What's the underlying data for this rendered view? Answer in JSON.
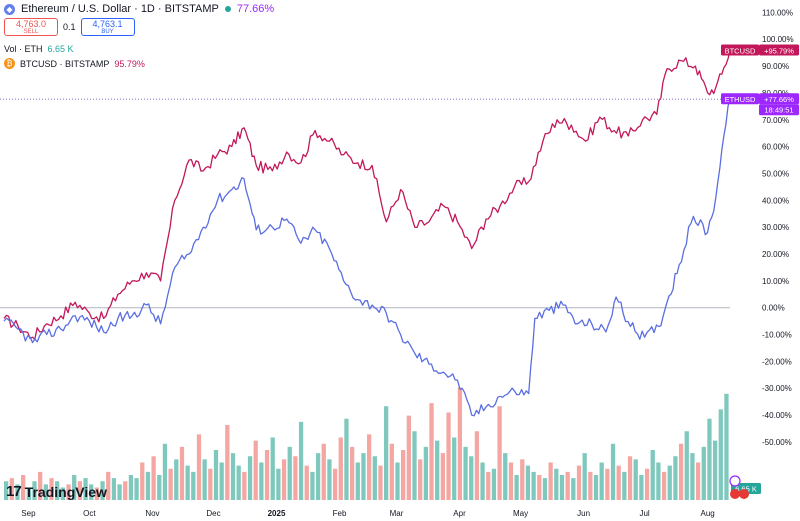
{
  "header": {
    "title": "Ethereum / U.S. Dollar · 1D · BITSTAMP",
    "change": "77.66%",
    "coin_glyph": "◆"
  },
  "trade": {
    "sell_price": "4,763.0",
    "sell_label": "SELL",
    "spread": "0.1",
    "buy_price": "4,763.1",
    "buy_label": "BUY"
  },
  "volume_legend": {
    "label": "Vol · ETH",
    "value": "6.65 K"
  },
  "compare_legend": {
    "label": "BTCUSD · BITSTAMP",
    "value": "95.79%",
    "coin_glyph": "₿"
  },
  "branding": {
    "text": "TradingView",
    "mark": "17"
  },
  "colors": {
    "eth": "#5b6ee1",
    "eth_up": "#9c27ff",
    "btc": "#c2185b",
    "vol_up": "#7fc8bd",
    "vol_down": "#f4a6a3",
    "zero": "#b2b5be",
    "price_line": "#7e57c2"
  },
  "chart_data": {
    "type": "line",
    "percent_scale": true,
    "x_tick_labels": [
      "Sep",
      "Oct",
      "Nov",
      "Dec",
      "2025",
      "Feb",
      "Mar",
      "Apr",
      "May",
      "Jun",
      "Jul",
      "Aug"
    ],
    "y_tick_labels": [
      "110.00%",
      "100.00%",
      "90.00%",
      "80.00%",
      "70.00%",
      "60.00%",
      "50.00%",
      "40.00%",
      "30.00%",
      "20.00%",
      "10.00%",
      "0.00%",
      "-10.00%",
      "-20.00%",
      "-30.00%",
      "-40.00%",
      "-50.00%"
    ],
    "ylim": [
      -53,
      112
    ],
    "series": [
      {
        "name": "ETHUSD",
        "last_label": "+77.66%",
        "time_label": "18:49:51",
        "tag": "ETHUSD",
        "points": [
          [
            "2024-08-20",
            -5
          ],
          [
            "2024-08-27",
            -8
          ],
          [
            "2024-09-03",
            -13
          ],
          [
            "2024-09-10",
            -10
          ],
          [
            "2024-09-17",
            -8
          ],
          [
            "2024-09-24",
            -3
          ],
          [
            "2024-10-01",
            -5
          ],
          [
            "2024-10-08",
            -9
          ],
          [
            "2024-10-15",
            -4
          ],
          [
            "2024-10-22",
            -3
          ],
          [
            "2024-10-29",
            1
          ],
          [
            "2024-11-05",
            -6
          ],
          [
            "2024-11-12",
            15
          ],
          [
            "2024-11-19",
            20
          ],
          [
            "2024-11-26",
            30
          ],
          [
            "2024-12-03",
            40
          ],
          [
            "2024-12-10",
            44
          ],
          [
            "2024-12-16",
            48
          ],
          [
            "2024-12-22",
            29
          ],
          [
            "2024-12-30",
            30
          ],
          [
            "2025-01-06",
            33
          ],
          [
            "2025-01-13",
            24
          ],
          [
            "2025-01-20",
            29
          ],
          [
            "2025-01-27",
            22
          ],
          [
            "2025-02-03",
            10
          ],
          [
            "2025-02-10",
            3
          ],
          [
            "2025-02-17",
            1
          ],
          [
            "2025-02-24",
            -2
          ],
          [
            "2025-03-03",
            -10
          ],
          [
            "2025-03-10",
            -17
          ],
          [
            "2025-03-17",
            -21
          ],
          [
            "2025-03-24",
            -24
          ],
          [
            "2025-03-31",
            -27
          ],
          [
            "2025-04-07",
            -40
          ],
          [
            "2025-04-14",
            -37
          ],
          [
            "2025-04-21",
            -33
          ],
          [
            "2025-04-28",
            -31
          ],
          [
            "2025-05-05",
            -32
          ],
          [
            "2025-05-08",
            -4
          ],
          [
            "2025-05-15",
            -1
          ],
          [
            "2025-05-22",
            1
          ],
          [
            "2025-05-29",
            -6
          ],
          [
            "2025-06-05",
            -6
          ],
          [
            "2025-06-12",
            -9
          ],
          [
            "2025-06-17",
            4
          ],
          [
            "2025-06-24",
            -7
          ],
          [
            "2025-07-01",
            -11
          ],
          [
            "2025-07-08",
            -7
          ],
          [
            "2025-07-12",
            2
          ],
          [
            "2025-07-18",
            16
          ],
          [
            "2025-07-25",
            34
          ],
          [
            "2025-08-01",
            28
          ],
          [
            "2025-08-05",
            41
          ],
          [
            "2025-08-08",
            59
          ],
          [
            "2025-08-12",
            77.66
          ]
        ]
      },
      {
        "name": "BTCUSD",
        "last_label": "+95.79%",
        "tag": "BTCUSD",
        "points": [
          [
            "2024-08-20",
            -4
          ],
          [
            "2024-08-27",
            -7
          ],
          [
            "2024-09-03",
            -11
          ],
          [
            "2024-09-10",
            -6
          ],
          [
            "2024-09-17",
            -3
          ],
          [
            "2024-09-24",
            2
          ],
          [
            "2024-10-01",
            -2
          ],
          [
            "2024-10-08",
            -4
          ],
          [
            "2024-10-15",
            5
          ],
          [
            "2024-10-22",
            10
          ],
          [
            "2024-10-29",
            13
          ],
          [
            "2024-11-05",
            10
          ],
          [
            "2024-11-12",
            40
          ],
          [
            "2024-11-19",
            55
          ],
          [
            "2024-11-26",
            51
          ],
          [
            "2024-12-03",
            57
          ],
          [
            "2024-12-10",
            60
          ],
          [
            "2024-12-16",
            67
          ],
          [
            "2024-12-22",
            53
          ],
          [
            "2024-12-30",
            51
          ],
          [
            "2025-01-06",
            58
          ],
          [
            "2025-01-13",
            54
          ],
          [
            "2025-01-20",
            66
          ],
          [
            "2025-01-27",
            62
          ],
          [
            "2025-02-03",
            57
          ],
          [
            "2025-02-10",
            54
          ],
          [
            "2025-02-17",
            53
          ],
          [
            "2025-02-24",
            32
          ],
          [
            "2025-03-03",
            44
          ],
          [
            "2025-03-10",
            30
          ],
          [
            "2025-03-17",
            32
          ],
          [
            "2025-03-24",
            38
          ],
          [
            "2025-03-31",
            32
          ],
          [
            "2025-04-07",
            22
          ],
          [
            "2025-04-14",
            33
          ],
          [
            "2025-04-21",
            38
          ],
          [
            "2025-04-28",
            45
          ],
          [
            "2025-05-05",
            47
          ],
          [
            "2025-05-12",
            62
          ],
          [
            "2025-05-19",
            70
          ],
          [
            "2025-05-26",
            68
          ],
          [
            "2025-06-02",
            62
          ],
          [
            "2025-06-09",
            71
          ],
          [
            "2025-06-16",
            66
          ],
          [
            "2025-06-23",
            64
          ],
          [
            "2025-06-30",
            70
          ],
          [
            "2025-07-07",
            72
          ],
          [
            "2025-07-12",
            89
          ],
          [
            "2025-07-19",
            92
          ],
          [
            "2025-07-26",
            90
          ],
          [
            "2025-08-01",
            80
          ],
          [
            "2025-08-05",
            82
          ],
          [
            "2025-08-08",
            87
          ],
          [
            "2025-08-12",
            95.79
          ]
        ]
      }
    ],
    "volume": {
      "name": "Vol · ETH",
      "last": "6.65 K",
      "values": [
        6,
        7,
        5,
        8,
        4,
        6,
        9,
        5,
        7,
        6,
        4,
        5,
        8,
        6,
        7,
        5,
        4,
        6,
        9,
        7,
        5,
        6,
        8,
        7,
        12,
        9,
        14,
        8,
        18,
        10,
        13,
        17,
        11,
        9,
        21,
        13,
        10,
        16,
        12,
        24,
        15,
        11,
        9,
        14,
        19,
        12,
        16,
        20,
        10,
        13,
        17,
        14,
        25,
        11,
        9,
        15,
        18,
        13,
        10,
        20,
        26,
        17,
        12,
        15,
        21,
        14,
        11,
        30,
        18,
        12,
        16,
        27,
        22,
        13,
        17,
        31,
        19,
        15,
        28,
        20,
        36,
        17,
        14,
        22,
        12,
        9,
        10,
        30,
        15,
        12,
        8,
        13,
        11,
        9,
        8,
        7,
        12,
        10,
        8,
        9,
        7,
        11,
        15,
        9,
        8,
        12,
        10,
        18,
        11,
        9,
        14,
        13,
        8,
        10,
        16,
        12,
        9,
        11,
        14,
        18,
        22,
        15,
        12,
        17,
        26,
        19,
        29,
        34
      ],
      "ups": [
        1,
        0,
        1,
        0,
        1,
        1,
        0,
        1,
        0,
        1,
        1,
        0,
        1,
        0,
        1,
        1,
        0,
        1,
        0,
        1,
        1,
        0,
        1,
        1,
        0,
        1,
        0,
        1,
        1,
        0,
        1,
        0,
        1,
        1,
        0,
        1,
        0,
        1,
        1,
        0,
        1,
        1,
        0,
        1,
        0,
        1,
        0,
        1,
        1,
        0,
        1,
        0,
        1,
        0,
        1,
        1,
        0,
        1,
        0,
        0,
        1,
        0,
        1,
        1,
        0,
        1,
        0,
        1,
        0,
        1,
        0,
        0,
        1,
        0,
        1,
        0,
        1,
        0,
        0,
        1,
        0,
        1,
        1,
        0,
        1,
        0,
        1,
        0,
        1,
        0,
        1,
        0,
        1,
        1,
        0,
        1,
        0,
        1,
        1,
        0,
        1,
        0,
        1,
        0,
        1,
        1,
        0,
        1,
        0,
        1,
        0,
        1,
        1,
        0,
        1,
        1,
        0,
        1,
        1,
        0,
        1,
        1,
        0,
        1,
        1,
        1,
        1,
        1
      ]
    }
  }
}
